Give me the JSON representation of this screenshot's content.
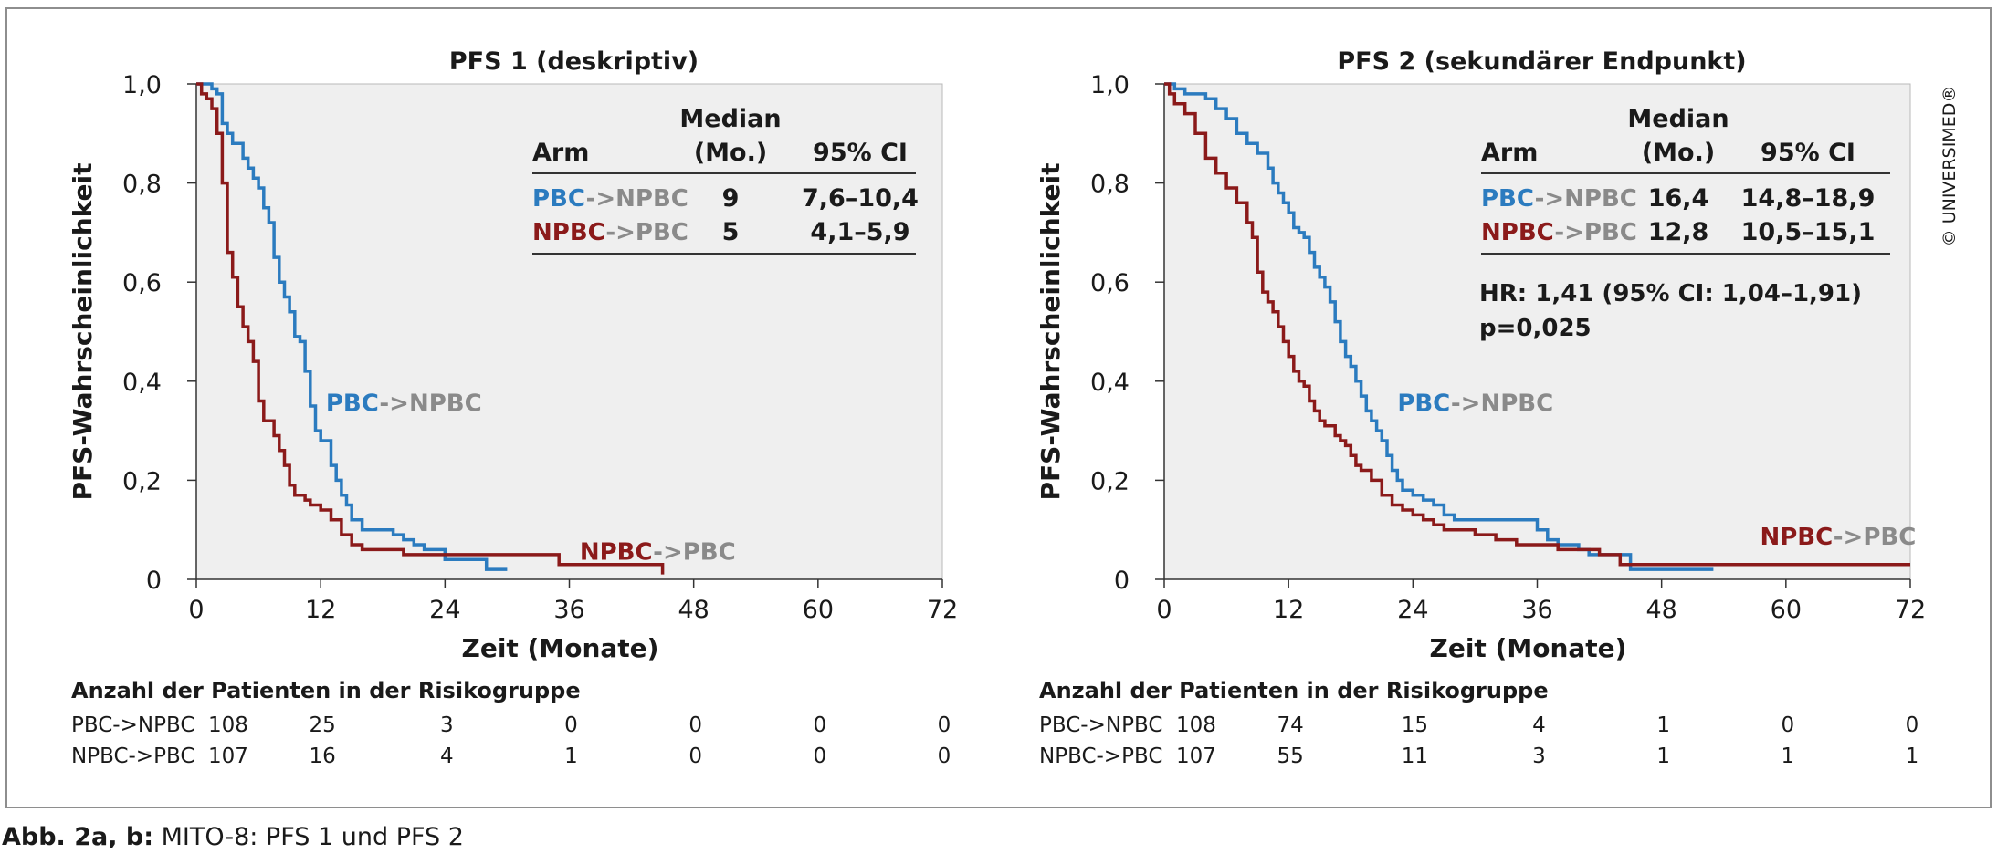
{
  "figure": {
    "caption_label": "Abb. 2a, b:",
    "caption_text": " MITO-8: PFS 1 und PFS 2",
    "copyright": "© UNIVERSIMED®",
    "colors": {
      "pbc_npbc": "#2b7bbf",
      "npbc_pbc": "#8b1a1a",
      "gray_text": "#8a8a8a",
      "plot_bg": "#efefef"
    }
  },
  "chart_data": [
    {
      "type": "line",
      "title": "PFS 1 (deskriptiv)",
      "xlabel": "Zeit (Monate)",
      "ylabel": "PFS-Wahrscheinlichkeit",
      "xlim": [
        0,
        72
      ],
      "ylim": [
        0,
        1
      ],
      "xticks": [
        "0",
        "12",
        "24",
        "36",
        "48",
        "60",
        "72"
      ],
      "yticks": [
        "0",
        "0,2",
        "0,4",
        "0,6",
        "0,8",
        "1,0"
      ],
      "grid": false,
      "series": [
        {
          "name_a": "PBC",
          "name_b": "->NPBC",
          "label_pos": [
            12.5,
            0.34
          ],
          "x": [
            0,
            1,
            1.5,
            2,
            2.5,
            3,
            3.5,
            4,
            4.5,
            5,
            5.5,
            6,
            6.5,
            7,
            7.5,
            8,
            8.5,
            9,
            9.5,
            10,
            10.5,
            11,
            11.5,
            12,
            13,
            13.5,
            14,
            14.5,
            15,
            16,
            17,
            18,
            19,
            20,
            21,
            22,
            24,
            27,
            28,
            30
          ],
          "y": [
            1,
            1,
            0.99,
            0.98,
            0.92,
            0.9,
            0.88,
            0.88,
            0.85,
            0.83,
            0.81,
            0.79,
            0.75,
            0.72,
            0.65,
            0.6,
            0.57,
            0.54,
            0.49,
            0.48,
            0.42,
            0.35,
            0.3,
            0.28,
            0.23,
            0.2,
            0.17,
            0.15,
            0.12,
            0.1,
            0.1,
            0.1,
            0.09,
            0.08,
            0.07,
            0.06,
            0.04,
            0.04,
            0.02,
            0.02
          ]
        },
        {
          "name_a": "NPBC",
          "name_b": "->PBC",
          "label_pos": [
            37,
            0.04
          ],
          "x": [
            0,
            0.5,
            1,
            1.5,
            2,
            2.5,
            3,
            3.5,
            4,
            4.5,
            5,
            5.5,
            6,
            6.5,
            7,
            7.5,
            8,
            8.5,
            9,
            9.5,
            10,
            10.5,
            11,
            11.5,
            12,
            13,
            14,
            15,
            16,
            18,
            20,
            22,
            24,
            26,
            28,
            30,
            34,
            35,
            36,
            45
          ],
          "y": [
            1,
            0.98,
            0.97,
            0.95,
            0.9,
            0.8,
            0.66,
            0.61,
            0.55,
            0.51,
            0.48,
            0.44,
            0.36,
            0.32,
            0.32,
            0.29,
            0.26,
            0.23,
            0.19,
            0.17,
            0.17,
            0.16,
            0.15,
            0.15,
            0.14,
            0.12,
            0.09,
            0.07,
            0.06,
            0.06,
            0.05,
            0.05,
            0.05,
            0.05,
            0.05,
            0.05,
            0.05,
            0.03,
            0.03,
            0.01
          ]
        }
      ],
      "median_table": {
        "header_top": "Median",
        "col_arm": "Arm",
        "col_median": "(Mo.)",
        "col_ci": "95% CI",
        "rows": [
          {
            "arm_a": "PBC",
            "arm_b": "->NPBC",
            "median": "9",
            "ci": "7,6–10,4"
          },
          {
            "arm_a": "NPBC",
            "arm_b": "->PBC",
            "median": "5",
            "ci": "4,1–5,9"
          }
        ]
      },
      "risk_table": {
        "title": "Anzahl der Patienten in der Risikogruppe",
        "rows": [
          {
            "label": "PBC->NPBC",
            "values": [
              "108",
              "25",
              "3",
              "0",
              "0",
              "0",
              "0"
            ]
          },
          {
            "label": "NPBC->PBC",
            "values": [
              "107",
              "16",
              "4",
              "1",
              "0",
              "0",
              "0"
            ]
          }
        ]
      }
    },
    {
      "type": "line",
      "title": "PFS 2 (sekundärer Endpunkt)",
      "xlabel": "Zeit (Monate)",
      "ylabel": "PFS-Wahrscheinlichkeit",
      "xlim": [
        0,
        72
      ],
      "ylim": [
        0,
        1
      ],
      "xticks": [
        "0",
        "12",
        "24",
        "36",
        "48",
        "60",
        "72"
      ],
      "yticks": [
        "0",
        "0,2",
        "0,4",
        "0,6",
        "0,8",
        "1,0"
      ],
      "grid": false,
      "annotation": [
        "HR: 1,41 (95% CI: 1,04–1,91)",
        "p=0,025"
      ],
      "series": [
        {
          "name_a": "PBC",
          "name_b": "->NPBC",
          "label_pos": [
            22.5,
            0.34
          ],
          "x": [
            0,
            1,
            2,
            3,
            4,
            5,
            6,
            7,
            8,
            9,
            10,
            10.5,
            11,
            11.5,
            12,
            12.5,
            13,
            13.5,
            14,
            14.5,
            15,
            15.5,
            16,
            16.5,
            17,
            17.5,
            18,
            18.5,
            19,
            19.5,
            20,
            20.5,
            21,
            21.5,
            22,
            22.5,
            23,
            24,
            25,
            26,
            27,
            28,
            31,
            35,
            36,
            37,
            38,
            40,
            41,
            44,
            45,
            53
          ],
          "y": [
            1,
            0.99,
            0.98,
            0.98,
            0.97,
            0.95,
            0.93,
            0.9,
            0.88,
            0.86,
            0.83,
            0.8,
            0.78,
            0.76,
            0.74,
            0.71,
            0.7,
            0.69,
            0.66,
            0.63,
            0.61,
            0.59,
            0.56,
            0.52,
            0.48,
            0.45,
            0.43,
            0.4,
            0.37,
            0.34,
            0.32,
            0.3,
            0.28,
            0.25,
            0.22,
            0.2,
            0.18,
            0.17,
            0.16,
            0.15,
            0.13,
            0.12,
            0.12,
            0.12,
            0.1,
            0.08,
            0.07,
            0.06,
            0.05,
            0.05,
            0.02,
            0.02
          ]
        },
        {
          "name_a": "NPBC",
          "name_b": "->PBC",
          "label_pos": [
            57.5,
            0.07
          ],
          "x": [
            0,
            0.5,
            1,
            2,
            3,
            4,
            5,
            6,
            7,
            8,
            8.5,
            9,
            9.5,
            10,
            10.5,
            11,
            11.5,
            12,
            12.5,
            13,
            13.5,
            14,
            14.5,
            15,
            15.5,
            16,
            16.5,
            17,
            17.5,
            18,
            18.5,
            19,
            20,
            21,
            22,
            23,
            24,
            25,
            26,
            27,
            30,
            32,
            34,
            36,
            38,
            40,
            42,
            44,
            72
          ],
          "y": [
            1,
            0.98,
            0.96,
            0.94,
            0.9,
            0.85,
            0.82,
            0.79,
            0.76,
            0.72,
            0.69,
            0.62,
            0.58,
            0.56,
            0.54,
            0.51,
            0.48,
            0.45,
            0.42,
            0.4,
            0.39,
            0.36,
            0.34,
            0.32,
            0.31,
            0.31,
            0.29,
            0.28,
            0.27,
            0.25,
            0.23,
            0.22,
            0.2,
            0.17,
            0.15,
            0.14,
            0.13,
            0.12,
            0.11,
            0.1,
            0.09,
            0.08,
            0.07,
            0.07,
            0.06,
            0.06,
            0.05,
            0.03,
            0.03
          ]
        }
      ],
      "median_table": {
        "header_top": "Median",
        "col_arm": "Arm",
        "col_median": "(Mo.)",
        "col_ci": "95% CI",
        "rows": [
          {
            "arm_a": "PBC",
            "arm_b": "->NPBC",
            "median": "16,4",
            "ci": "14,8–18,9"
          },
          {
            "arm_a": "NPBC",
            "arm_b": "->PBC",
            "median": "12,8",
            "ci": "10,5–15,1"
          }
        ]
      },
      "risk_table": {
        "title": "Anzahl der Patienten in der Risikogruppe",
        "rows": [
          {
            "label": "PBC->NPBC",
            "values": [
              "108",
              "74",
              "15",
              "4",
              "1",
              "0",
              "0"
            ]
          },
          {
            "label": "NPBC->PBC",
            "values": [
              "107",
              "55",
              "11",
              "3",
              "1",
              "1",
              "1"
            ]
          }
        ]
      }
    }
  ]
}
